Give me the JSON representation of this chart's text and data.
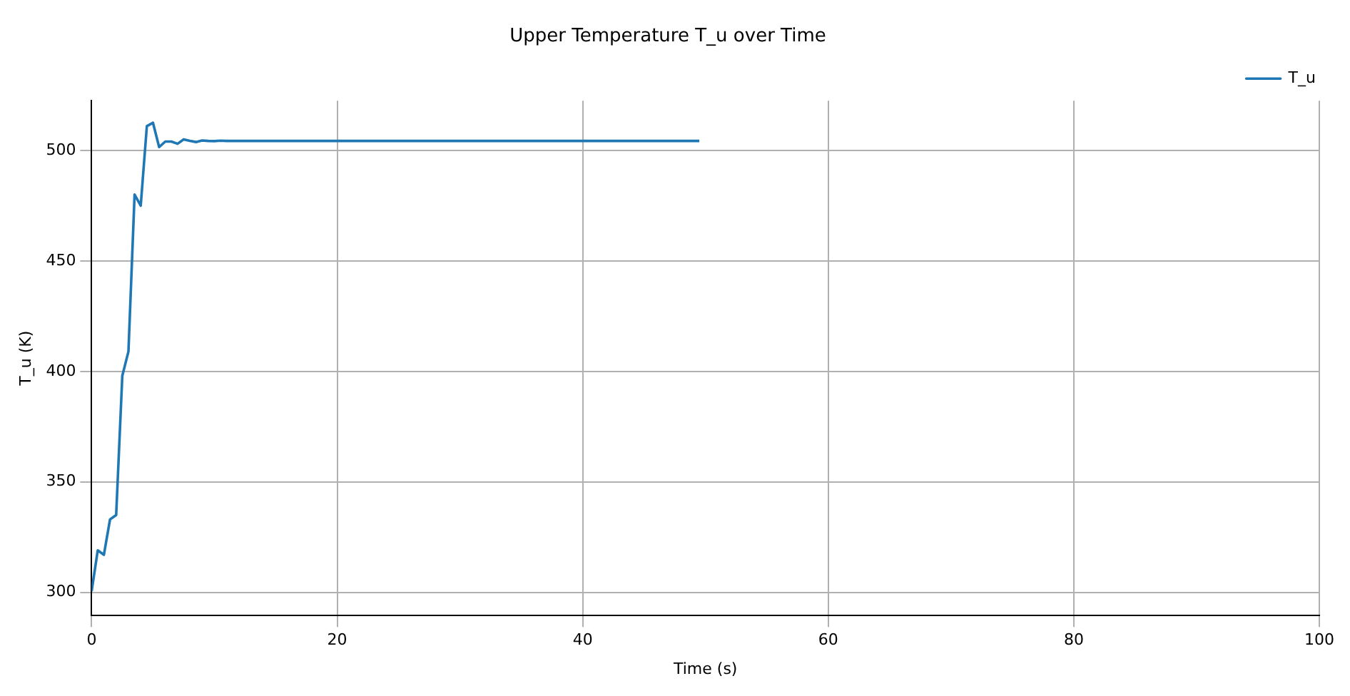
{
  "chart_data": {
    "type": "line",
    "title": "Upper Temperature T_u over Time",
    "xlabel": "Time (s)",
    "ylabel": "T_u (K)",
    "series": [
      {
        "name": "T_u",
        "color": "#1f77b4",
        "x": [
          0,
          0.5,
          1,
          1.5,
          2,
          2.5,
          3,
          3.5,
          4,
          4.5,
          5,
          5.5,
          6,
          6.5,
          7,
          7.5,
          8,
          8.5,
          9,
          9.5,
          10,
          10.5,
          11,
          15,
          20,
          30,
          40,
          49.5
        ],
        "values": [
          300.5,
          319,
          317,
          333,
          335,
          398,
          409,
          480,
          475,
          511,
          512.5,
          501.5,
          504,
          504,
          503,
          505,
          504.3,
          503.8,
          504.5,
          504.3,
          504.2,
          504.4,
          504.3,
          504.3,
          504.3,
          504.3,
          504.3,
          504.3
        ]
      }
    ],
    "xlim": [
      0,
      100
    ],
    "xticks": [
      0,
      20,
      40,
      60,
      80,
      100
    ],
    "ylim": [
      289.5,
      522.5
    ],
    "yticks": [
      300,
      350,
      400,
      450,
      500
    ],
    "grid": true,
    "legend": "top right",
    "marker": "none",
    "line_style": "solid"
  }
}
